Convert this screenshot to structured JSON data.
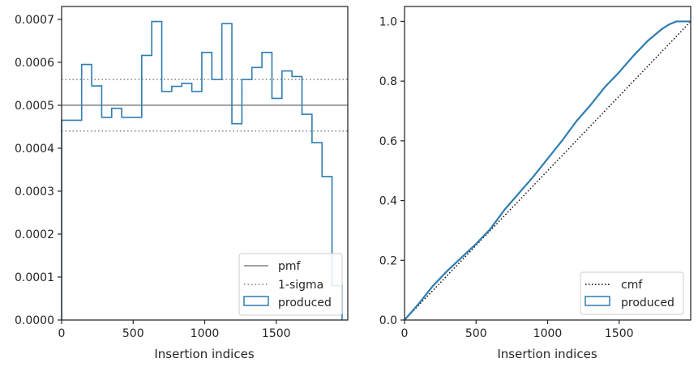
{
  "chart_data": [
    {
      "type": "step",
      "xlabel": "Insertion indices",
      "ylabel": "",
      "xlim": [
        0,
        2000
      ],
      "ylim": [
        0,
        0.00073
      ],
      "xticks": [
        0,
        500,
        1000,
        1500
      ],
      "xtick_labels": [
        "0",
        "500",
        "1000",
        "1500"
      ],
      "yticks": [
        0,
        0.0001,
        0.0002,
        0.0003,
        0.0004,
        0.0005,
        0.0006,
        0.0007
      ],
      "ytick_labels": [
        "0.0000",
        "0.0001",
        "0.0002",
        "0.0003",
        "0.0004",
        "0.0005",
        "0.0006",
        "0.0007"
      ],
      "pmf": 0.0005,
      "sigma_lines": [
        0.00044,
        0.00056
      ],
      "legend_position": "lower right",
      "legend": [
        "pmf",
        "1-sigma",
        "produced"
      ],
      "produced": {
        "name": "produced",
        "bin_edges": [
          0,
          140,
          210,
          280,
          350,
          420,
          560,
          630,
          700,
          770,
          840,
          910,
          980,
          1050,
          1120,
          1190,
          1260,
          1330,
          1400,
          1470,
          1540,
          1610,
          1680,
          1750,
          1820,
          1890,
          1960
        ],
        "values": [
          0.000465,
          0.000595,
          0.000545,
          0.000472,
          0.000493,
          0.000472,
          0.000616,
          0.000695,
          0.000532,
          0.000544,
          0.000551,
          0.000532,
          0.000623,
          0.00056,
          0.00069,
          0.000457,
          0.00056,
          0.000588,
          0.000623,
          0.000516,
          0.00058,
          0.000567,
          0.000479,
          0.000413,
          0.000334,
          8e-05
        ]
      },
      "colors": {
        "produced": "#2f7db2",
        "pmf": "#808080",
        "sigma": "#808080"
      }
    },
    {
      "type": "line",
      "xlabel": "Insertion indices",
      "ylabel": "",
      "xlim": [
        0,
        2000
      ],
      "ylim": [
        0,
        1.05
      ],
      "xticks": [
        0,
        500,
        1000,
        1500
      ],
      "xtick_labels": [
        "0",
        "500",
        "1000",
        "1500"
      ],
      "yticks": [
        0,
        0.2,
        0.4,
        0.6,
        0.8,
        1.0
      ],
      "ytick_labels": [
        "0.0",
        "0.2",
        "0.4",
        "0.6",
        "0.8",
        "1.0"
      ],
      "legend_position": "lower right",
      "legend": [
        "cmf",
        "produced"
      ],
      "series": [
        {
          "name": "cmf",
          "style": "dotted",
          "x": [
            0,
            2000
          ],
          "y": [
            0,
            1.0
          ]
        },
        {
          "name": "produced",
          "style": "solid",
          "x": [
            0,
            100,
            200,
            300,
            400,
            500,
            600,
            700,
            800,
            900,
            1000,
            1100,
            1200,
            1300,
            1400,
            1500,
            1600,
            1700,
            1800,
            1850,
            1900,
            1960,
            2000
          ],
          "y": [
            0,
            0.055,
            0.115,
            0.165,
            0.21,
            0.255,
            0.305,
            0.37,
            0.425,
            0.48,
            0.54,
            0.6,
            0.665,
            0.72,
            0.78,
            0.83,
            0.885,
            0.935,
            0.975,
            0.99,
            1.0,
            1.0,
            1.0
          ]
        }
      ],
      "colors": {
        "produced": "#2f7db2",
        "cmf": "#000000"
      }
    }
  ]
}
